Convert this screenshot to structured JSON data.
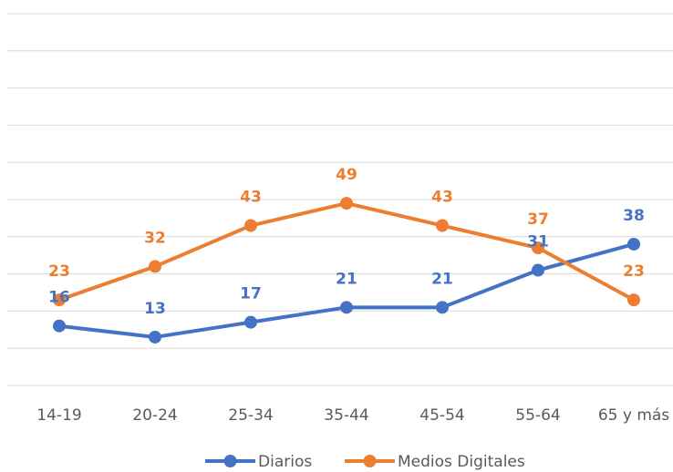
{
  "chart_data": {
    "type": "line",
    "categories": [
      "14-19",
      "20-24",
      "25-34",
      "35-44",
      "45-54",
      "55-64",
      "65 y más"
    ],
    "series": [
      {
        "name": "Diarios",
        "color": "#4472c4",
        "values": [
          16,
          13,
          17,
          21,
          21,
          31,
          38
        ]
      },
      {
        "name": "Medios Digitales",
        "color": "#ed7d31",
        "values": [
          23,
          32,
          43,
          49,
          43,
          37,
          23
        ]
      }
    ],
    "ylim": [
      0,
      100
    ],
    "yticks": [
      0,
      10,
      20,
      30,
      40,
      50,
      60,
      70,
      80,
      90,
      100
    ],
    "grid": true,
    "legend": "bottom"
  }
}
